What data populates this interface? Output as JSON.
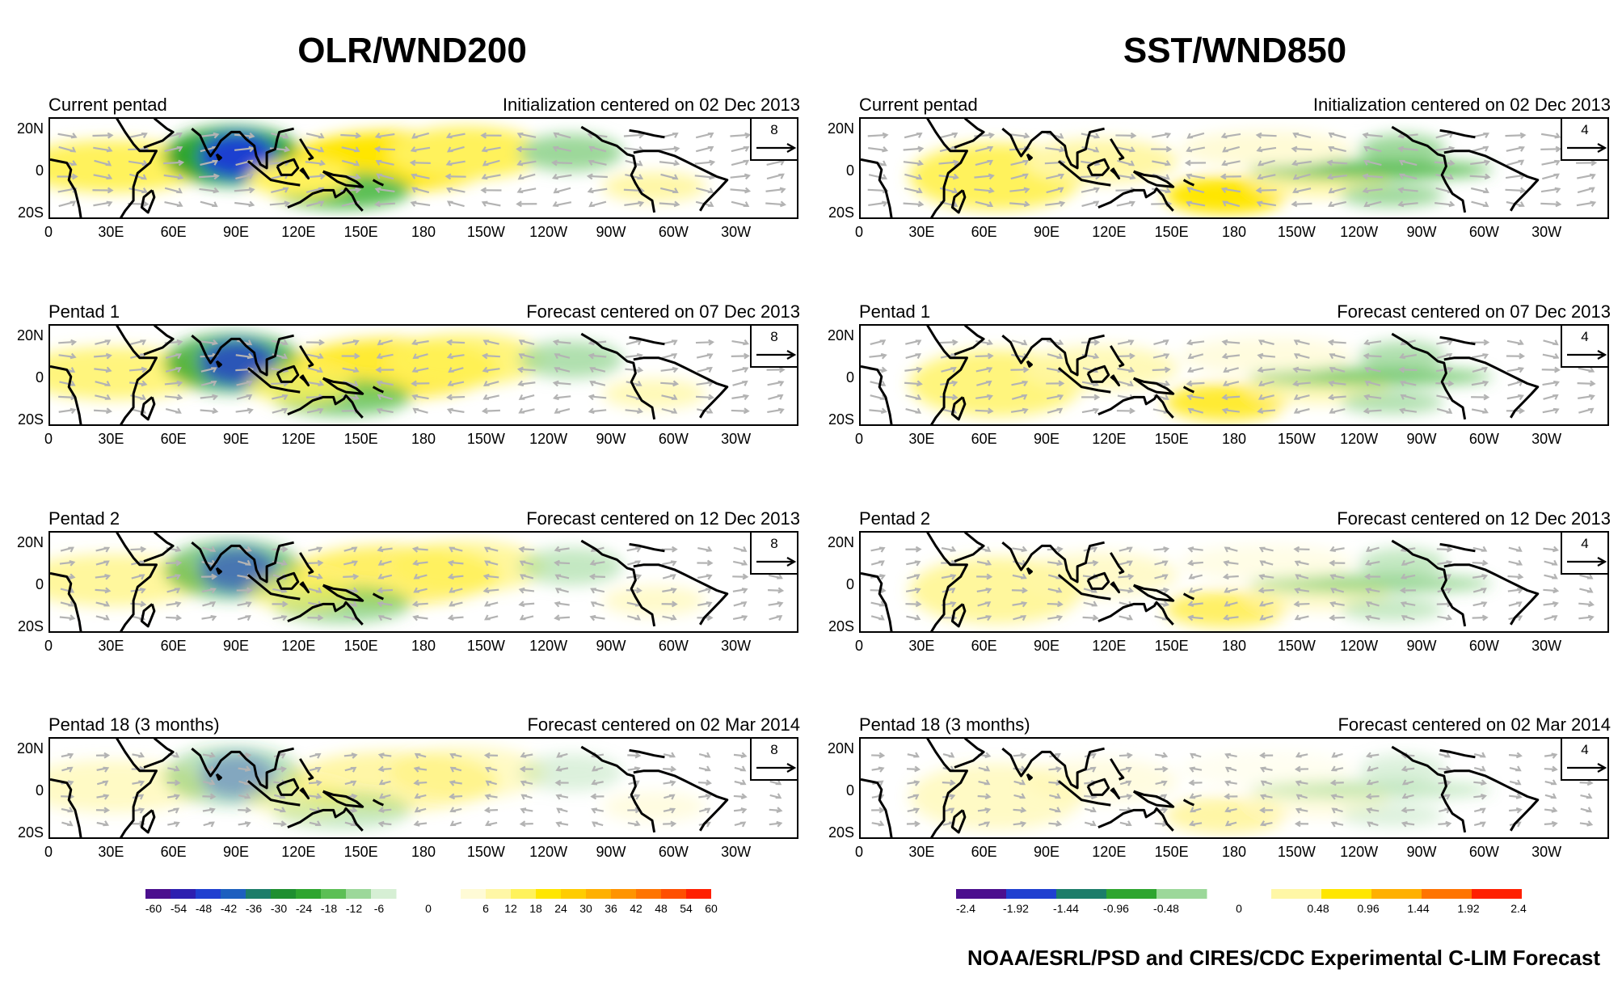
{
  "columns": [
    {
      "title": "OLR/WND200",
      "ref_vector": "8",
      "panels": [
        {
          "left": "Current pentad",
          "right": "Initialization centered on 02 Dec 2013"
        },
        {
          "left": "Pentad 1",
          "right": "Forecast centered on 07 Dec 2013"
        },
        {
          "left": "Pentad 2",
          "right": "Forecast centered on 12 Dec 2013"
        },
        {
          "left": "Pentad 18 (3 months)",
          "right": "Forecast centered on 02 Mar 2014"
        }
      ],
      "colorbar": {
        "neg_labels": [
          "-60",
          "-54",
          "-48",
          "-42",
          "-36",
          "-30",
          "-24",
          "-18",
          "-12",
          "-6"
        ],
        "zero_label": "0",
        "pos_labels": [
          "6",
          "12",
          "18",
          "24",
          "30",
          "36",
          "42",
          "48",
          "54",
          "60"
        ]
      }
    },
    {
      "title": "SST/WND850",
      "ref_vector": "4",
      "panels": [
        {
          "left": "Current pentad",
          "right": "Initialization centered on 02 Dec 2013"
        },
        {
          "left": "Pentad 1",
          "right": "Forecast centered on 07 Dec 2013"
        },
        {
          "left": "Pentad 2",
          "right": "Forecast centered on 12 Dec 2013"
        },
        {
          "left": "Pentad 18 (3 months)",
          "right": "Forecast centered on 02 Mar 2014"
        }
      ],
      "colorbar": {
        "neg_labels": [
          "-2.4",
          "-1.92",
          "-1.44",
          "-0.96",
          "-0.48"
        ],
        "zero_label": "0",
        "pos_labels": [
          "0.48",
          "0.96",
          "1.44",
          "1.92",
          "2.4"
        ]
      }
    }
  ],
  "y_ticks": [
    "20N",
    "0",
    "20S"
  ],
  "x_ticks": [
    "0",
    "30E",
    "60E",
    "90E",
    "120E",
    "150E",
    "180",
    "150W",
    "120W",
    "90W",
    "60W",
    "30W"
  ],
  "footer": "NOAA/ESRL/PSD and CIRES/CDC Experimental C-LIM Forecast",
  "colors": {
    "neg_scale": [
      "#4b0f8e",
      "#2d1fb0",
      "#1f3fd0",
      "#1d5fbf",
      "#1c7d6a",
      "#1e8f30",
      "#2ea52f",
      "#5cbf55",
      "#9cd89a",
      "#d6efd4"
    ],
    "pos_scale": [
      "#fffbd6",
      "#fff7a6",
      "#fff25c",
      "#ffe600",
      "#ffcc00",
      "#ffb000",
      "#ff9400",
      "#ff7400",
      "#ff4f00",
      "#ff2000"
    ],
    "wind_vectors": "#b3b3b3",
    "coast": "#000000"
  }
}
